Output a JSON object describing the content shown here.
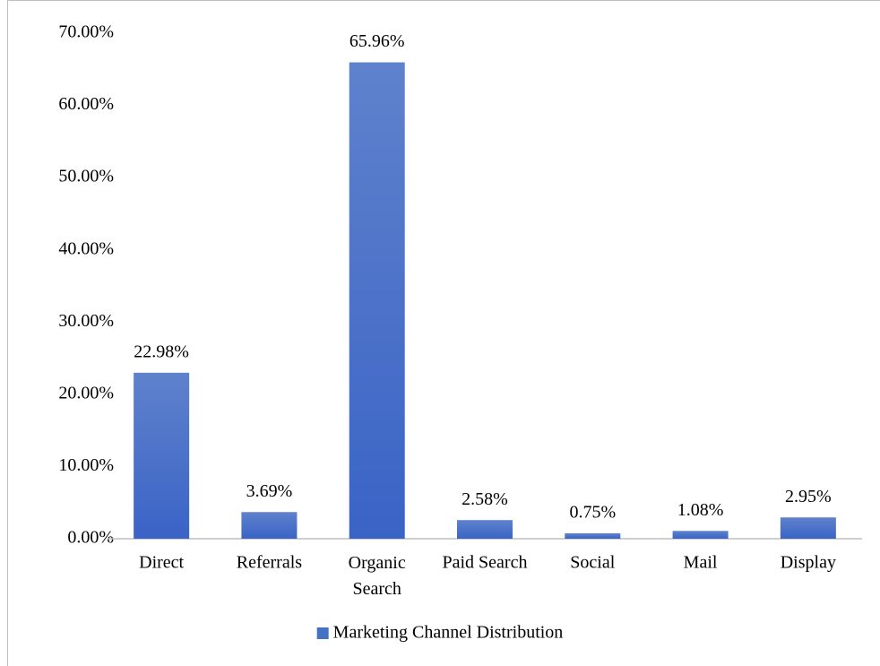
{
  "chart_data": {
    "type": "bar",
    "categories": [
      "Direct",
      "Referrals",
      "Organic Search",
      "Paid Search",
      "Social",
      "Mail",
      "Display"
    ],
    "series": [
      {
        "name": "Marketing Channel Distribution",
        "color": "#4472c4",
        "values": [
          22.98,
          3.69,
          65.96,
          2.58,
          0.75,
          1.08,
          2.95
        ],
        "value_labels": [
          "22.98%",
          "3.69%",
          "65.96%",
          "2.58%",
          "0.75%",
          "1.08%",
          "2.95%"
        ]
      }
    ],
    "ylim": [
      0,
      70
    ],
    "yticks": [
      {
        "value": 0,
        "label": "0.00%"
      },
      {
        "value": 10,
        "label": "10.00%"
      },
      {
        "value": 20,
        "label": "20.00%"
      },
      {
        "value": 30,
        "label": "30.00%"
      },
      {
        "value": 40,
        "label": "40.00%"
      },
      {
        "value": 50,
        "label": "50.00%"
      },
      {
        "value": 60,
        "label": "60.00%"
      },
      {
        "value": 70,
        "label": "70.00%"
      }
    ],
    "grid": false,
    "legend": "bottom"
  }
}
